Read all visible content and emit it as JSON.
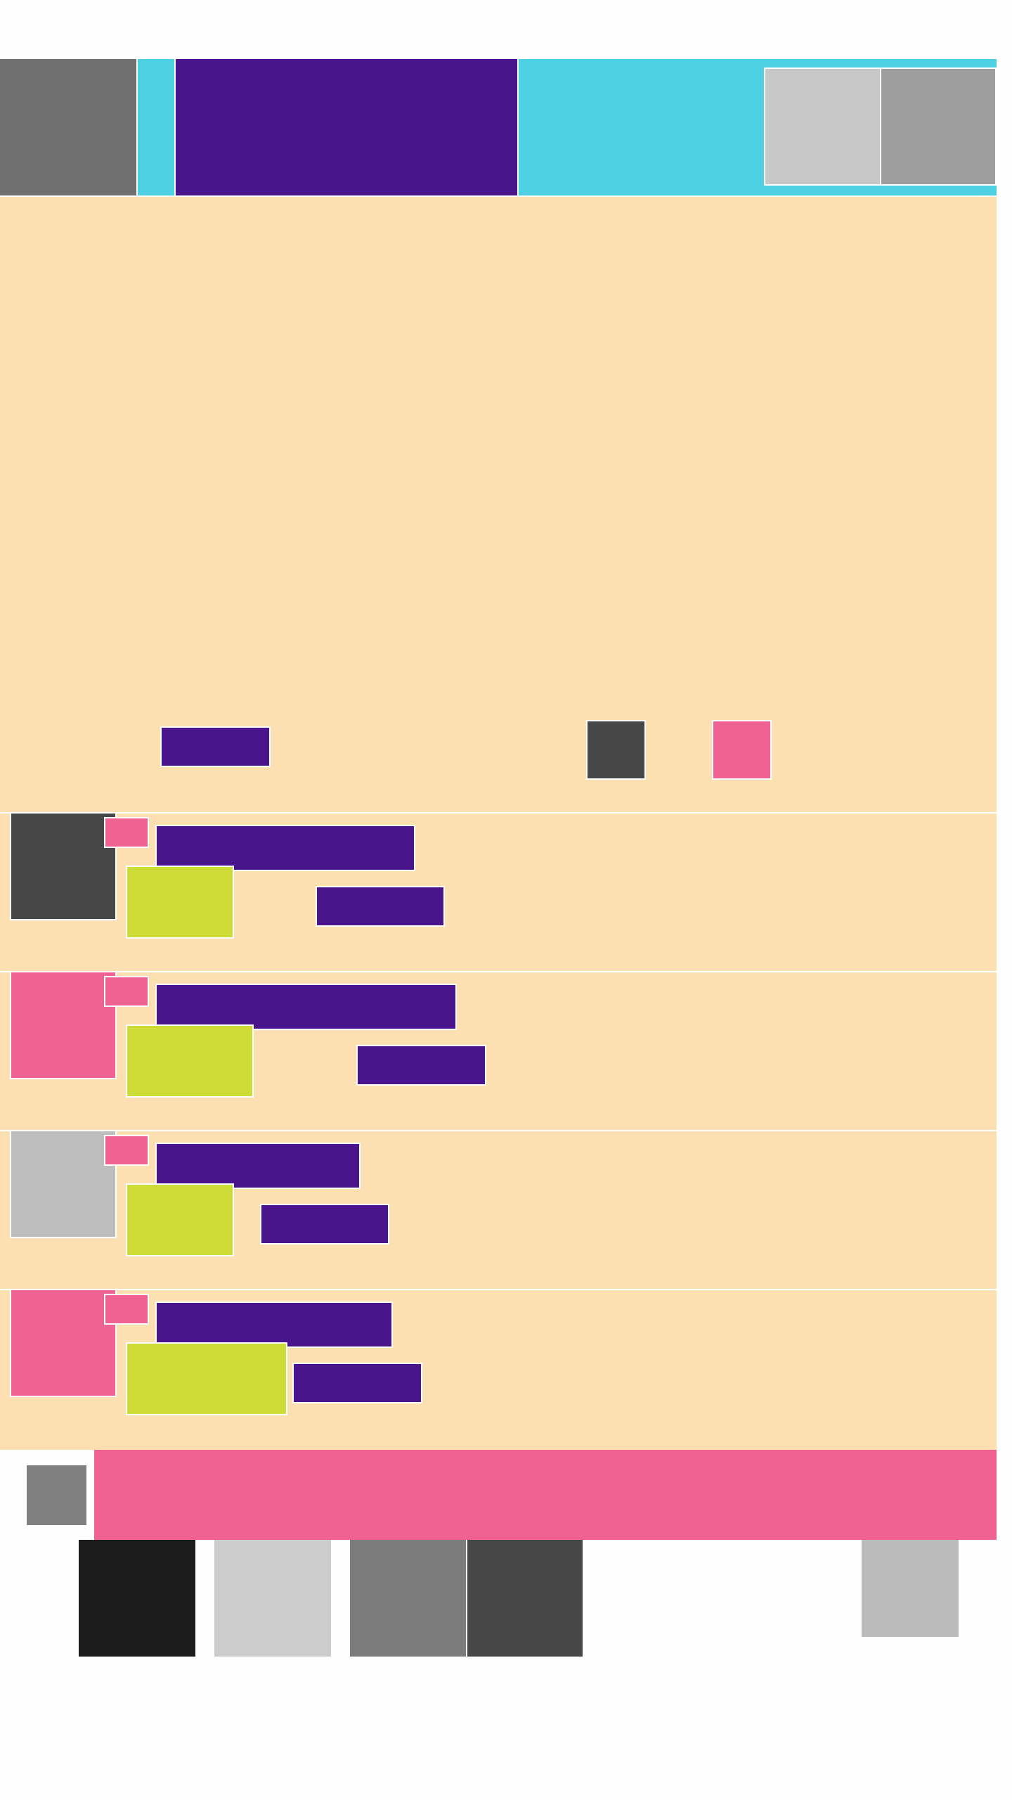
{
  "colors": {
    "header_cyan": "#4dd0e1",
    "header_gray": "#707070",
    "title_purple": "#4a148c",
    "action_light": "#c8c8c8",
    "action_mid": "#9e9e9e",
    "content_bg": "#fde0b2",
    "dark_gray": "#474747",
    "accent_pink": "#f06292",
    "badge_lime": "#cddc39",
    "thumb_light": "#bdbdbd",
    "banner_icon_gray": "#808080",
    "nav_black": "#1c1c1c",
    "nav_light": "#cccccc",
    "nav_mid": "#7c7c7c",
    "nav_dark": "#474747",
    "nav_extra": "#bbbbbb",
    "page_bg": "#fefefe"
  },
  "header": {
    "left_icon": "app-icon",
    "title": "",
    "actions": [
      {
        "icon": "action-icon"
      },
      {
        "icon": "action-icon"
      }
    ]
  },
  "hero": {
    "label": "",
    "controls": [
      {
        "icon": "control-icon"
      },
      {
        "icon": "control-icon"
      }
    ]
  },
  "list": {
    "items": [
      {
        "thumb_color": "#474747",
        "title": "",
        "meta": ""
      },
      {
        "thumb_color": "#f06292",
        "title": "",
        "meta": ""
      },
      {
        "thumb_color": "#bdbdbd",
        "title": "",
        "meta": ""
      },
      {
        "thumb_color": "#f06292",
        "title": "",
        "meta": ""
      }
    ]
  },
  "banner": {
    "icon": "banner-icon",
    "text": ""
  },
  "bottom_nav": {
    "items": [
      {
        "icon": "nav-icon",
        "label": ""
      },
      {
        "icon": "nav-icon",
        "label": ""
      },
      {
        "icon": "nav-icon",
        "label": ""
      },
      {
        "icon": "nav-icon",
        "label": ""
      }
    ],
    "extra": {
      "icon": "nav-icon"
    }
  }
}
